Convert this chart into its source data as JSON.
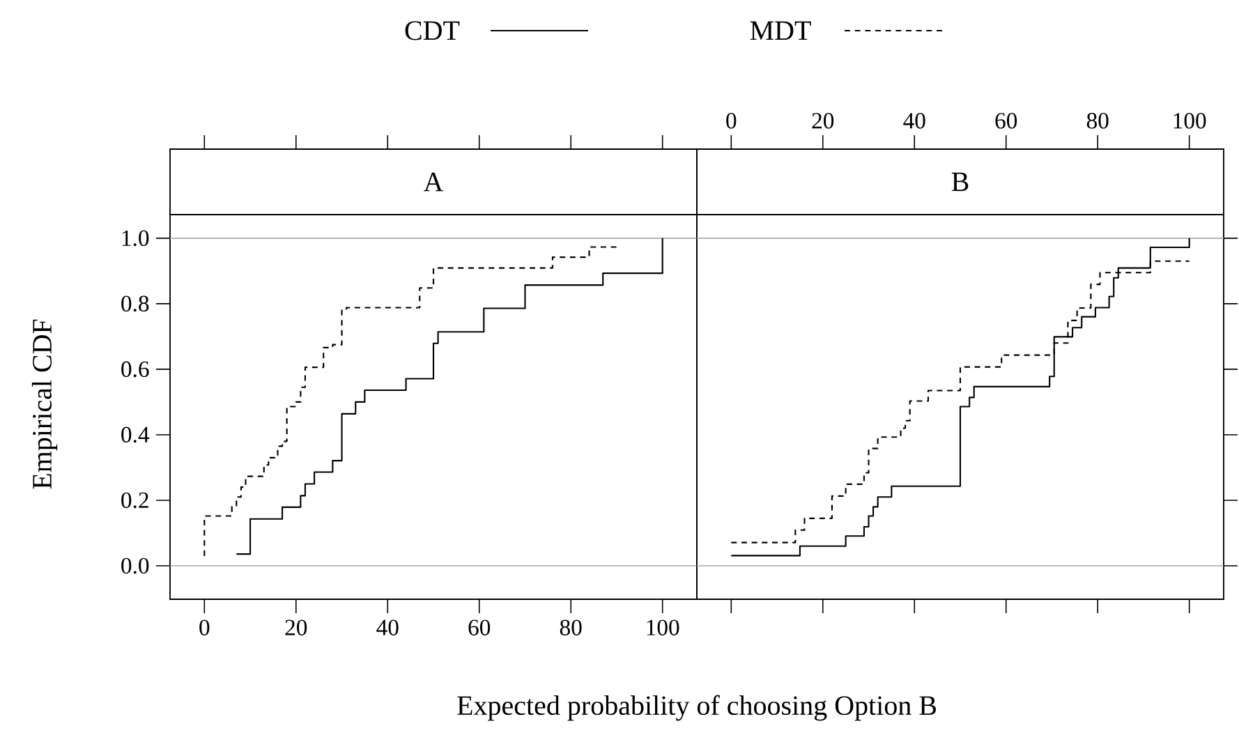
{
  "chart_data": [
    {
      "type": "step",
      "title": "A",
      "xlabel": "Expected probability of choosing Option B",
      "ylabel": "Empirical CDF",
      "legend": "top",
      "xlim": [
        -7.5,
        107.5
      ],
      "ylim": [
        -0.102,
        1.072
      ],
      "xticks": [
        0,
        20,
        40,
        60,
        80,
        100
      ],
      "yticks": [
        {
          "value": 0,
          "label": "0.0"
        },
        {
          "value": 0.2,
          "label": "0.2"
        },
        {
          "value": 0.4,
          "label": "0.4"
        },
        {
          "value": 0.6,
          "label": "0.6"
        },
        {
          "value": 0.8,
          "label": "0.8"
        },
        {
          "value": 1,
          "label": "1.0"
        }
      ],
      "ref_lines": [
        {
          "axis": "y",
          "value": 0,
          "color": "#aaaaaa"
        },
        {
          "axis": "y",
          "value": 1,
          "color": "#aaaaaa"
        }
      ],
      "series": [
        {
          "name": "CDT",
          "color": "#000000",
          "line_style": "solid",
          "x": [
            7,
            10,
            17,
            21,
            22,
            24,
            28,
            30,
            33,
            35,
            44,
            50,
            51,
            61,
            70,
            87,
            100
          ],
          "values": [
            0.036,
            0.143,
            0.179,
            0.214,
            0.25,
            0.286,
            0.321,
            0.464,
            0.5,
            0.536,
            0.571,
            0.679,
            0.714,
            0.786,
            0.857,
            0.893,
            1.0
          ]
        },
        {
          "name": "MDT",
          "color": "#000000",
          "line_style": "dashed",
          "x": [
            0,
            0,
            6,
            7,
            8,
            9,
            13,
            14,
            16,
            17,
            18,
            20,
            21,
            22,
            26,
            28,
            30,
            31,
            47,
            50,
            76,
            84,
            90
          ],
          "values": [
            0.03,
            0.152,
            0.18,
            0.21,
            0.24,
            0.273,
            0.308,
            0.33,
            0.365,
            0.38,
            0.486,
            0.5,
            0.545,
            0.606,
            0.666,
            0.675,
            0.784,
            0.788,
            0.848,
            0.909,
            0.942,
            0.973,
            0.973
          ]
        }
      ]
    },
    {
      "type": "step",
      "title": "B",
      "tick_labels": "x",
      "xlim": [
        -7.5,
        107.5
      ],
      "ylim": [
        -0.102,
        1.072
      ],
      "xticks": [
        0,
        20,
        40,
        60,
        80,
        100
      ],
      "yticks": [
        {
          "value": 0,
          "label": null
        },
        {
          "value": 0.2,
          "label": null
        },
        {
          "value": 0.4,
          "label": null
        },
        {
          "value": 0.6,
          "label": null
        },
        {
          "value": 0.8,
          "label": null
        },
        {
          "value": 1,
          "label": null
        }
      ],
      "ref_lines": [
        {
          "axis": "y",
          "value": 0,
          "color": "#aaaaaa"
        },
        {
          "axis": "y",
          "value": 1,
          "color": "#aaaaaa"
        }
      ],
      "series": [
        {
          "color": "#000000",
          "line_style": "solid",
          "x": [
            0,
            15,
            25,
            29,
            30,
            31,
            32,
            35,
            50,
            52,
            53,
            69.5,
            70.5,
            74.5,
            76.5,
            79.5,
            82.5,
            83.5,
            84.5,
            91.5,
            100
          ],
          "values": [
            0.031,
            0.06,
            0.091,
            0.119,
            0.152,
            0.18,
            0.21,
            0.243,
            0.486,
            0.514,
            0.547,
            0.578,
            0.699,
            0.727,
            0.76,
            0.788,
            0.822,
            0.879,
            0.909,
            0.972,
            1.0
          ]
        },
        {
          "color": "#000000",
          "line_style": "dashed",
          "x": [
            0,
            14,
            16,
            22,
            25,
            29,
            30,
            32,
            37,
            38,
            39,
            43,
            50,
            59,
            70.5,
            73.5,
            75.5,
            78.5,
            80.5,
            91.5,
            100
          ],
          "values": [
            0.071,
            0.109,
            0.145,
            0.213,
            0.249,
            0.284,
            0.358,
            0.393,
            0.42,
            0.443,
            0.503,
            0.535,
            0.607,
            0.643,
            0.68,
            0.749,
            0.787,
            0.859,
            0.895,
            0.93,
            0.93
          ]
        }
      ]
    }
  ]
}
